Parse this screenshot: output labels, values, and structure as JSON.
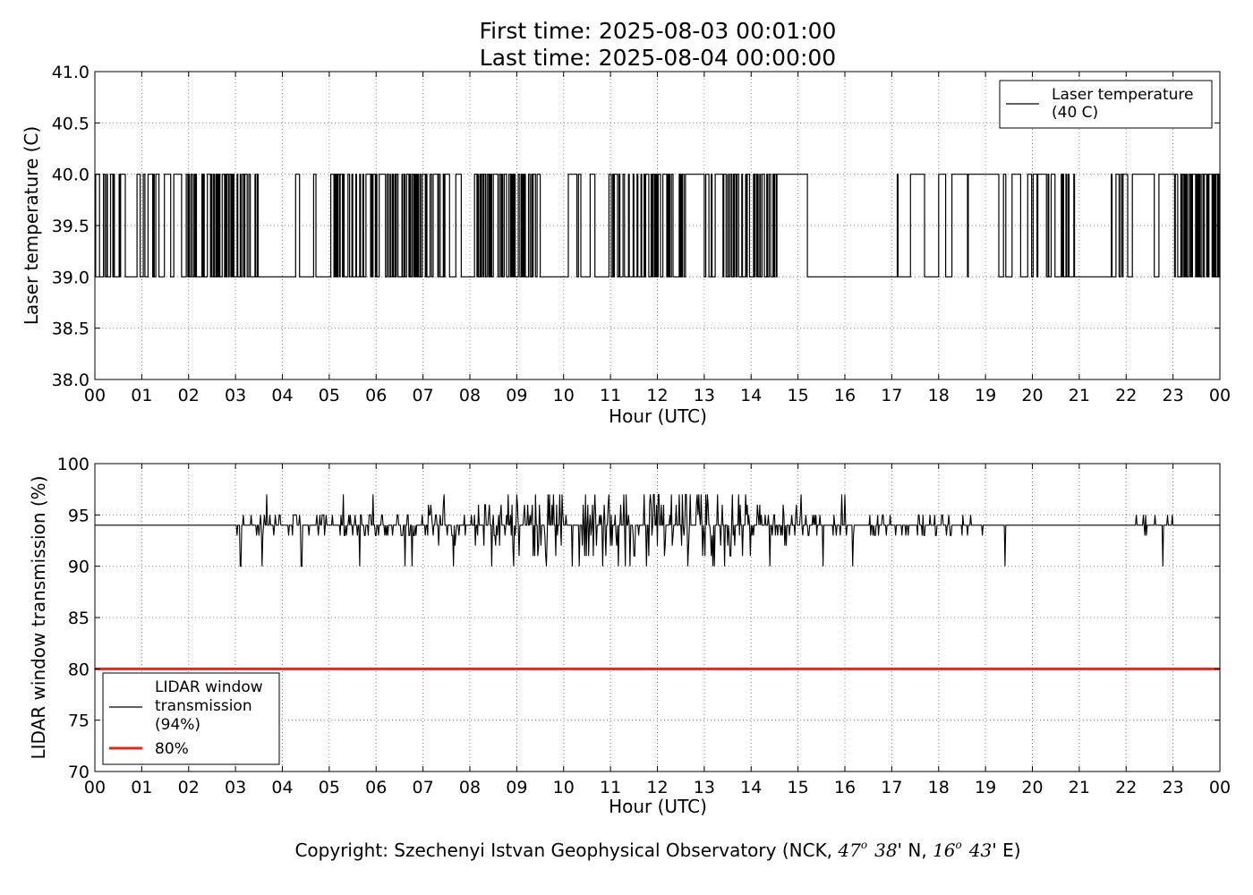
{
  "title": {
    "line1": "First time: 2025-08-03 00:01:00",
    "line2": "Last time: 2025-08-04 00:00:00"
  },
  "copyright": {
    "prefix": "Copyright: Szechenyi Istvan Geophysical Observatory (NCK, ",
    "lat_deg": "47",
    "lat_deg_sup": "o",
    "lat_min": "38",
    "lat_suffix": "' N, ",
    "lon_deg": "16",
    "lon_deg_sup": "o",
    "lon_min": "43",
    "lon_suffix": "' E)"
  },
  "colors": {
    "series": "#000000",
    "threshold": "#e8261a",
    "grid": "#8a8a8a"
  },
  "chart_data": [
    {
      "type": "line",
      "name": "laser-temperature-chart",
      "title": "",
      "xlabel": "Hour (UTC)",
      "ylabel": "Laser temperature (C)",
      "xlim": [
        0,
        24
      ],
      "ylim": [
        38.0,
        41.0
      ],
      "grid": true,
      "grid_style": "dotted",
      "legend_position": "top-right",
      "x_ticks": [
        "00",
        "01",
        "02",
        "03",
        "04",
        "05",
        "06",
        "07",
        "08",
        "09",
        "10",
        "11",
        "12",
        "13",
        "14",
        "15",
        "16",
        "17",
        "18",
        "19",
        "20",
        "21",
        "22",
        "23",
        "00"
      ],
      "y_ticks": [
        "38.0",
        "38.5",
        "39.0",
        "39.5",
        "40.0",
        "40.5",
        "41.0"
      ],
      "y_tick_values": [
        38.0,
        38.5,
        39.0,
        39.5,
        40.0,
        40.5,
        41.0
      ],
      "series": [
        {
          "name": "Laser temperature\n(40 C)",
          "legend_lines": [
            "Laser temperature",
            "(40 C)"
          ],
          "color": "#000000",
          "kind": "binary-step",
          "values_set": [
            39.0,
            40.0
          ],
          "low": 39.0,
          "high": 40.0,
          "toggle_density_by_hour": [
            14,
            10,
            22,
            14,
            4,
            18,
            22,
            10,
            20,
            18,
            6,
            22,
            18,
            16,
            20,
            2,
            0,
            4,
            2,
            4,
            14,
            6,
            4,
            24
          ],
          "sustained_high_intervals": [
            [
              12.6,
              13.0
            ],
            [
              14.55,
              15.15
            ]
          ],
          "sustained_low_intervals": [
            [
              0.65,
              0.9
            ],
            [
              3.5,
              4.0
            ],
            [
              9.5,
              10.1
            ],
            [
              15.2,
              16.6
            ],
            [
              20.9,
              21.5
            ]
          ]
        }
      ]
    },
    {
      "type": "line",
      "name": "window-transmission-chart",
      "title": "",
      "xlabel": "Hour (UTC)",
      "ylabel": "LIDAR window transmission (%)",
      "xlim": [
        0,
        24
      ],
      "ylim": [
        70,
        100
      ],
      "grid": true,
      "grid_style": "dotted",
      "legend_position": "bottom-left",
      "x_ticks": [
        "00",
        "01",
        "02",
        "03",
        "04",
        "05",
        "06",
        "07",
        "08",
        "09",
        "10",
        "11",
        "12",
        "13",
        "14",
        "15",
        "16",
        "17",
        "18",
        "19",
        "20",
        "21",
        "22",
        "23",
        "00"
      ],
      "y_ticks": [
        "70",
        "75",
        "80",
        "85",
        "90",
        "95",
        "100"
      ],
      "y_tick_values": [
        70,
        75,
        80,
        85,
        90,
        95,
        100
      ],
      "series": [
        {
          "name": "LIDAR window\ntransmission\n(94%)",
          "legend_lines": [
            "LIDAR window",
            "transmission",
            "(94%)"
          ],
          "color": "#000000",
          "kind": "noisy-baseline",
          "baseline": 94,
          "noise_amplitude_by_hour": [
            0,
            0,
            0,
            0.6,
            1,
            1.2,
            1.2,
            1.4,
            2,
            3,
            3,
            3,
            3,
            3,
            2,
            1.2,
            0.8,
            0.6,
            0.6,
            0.3,
            0,
            0,
            0.5,
            0
          ],
          "min_observed": 90,
          "max_observed": 97
        },
        {
          "name": "80%",
          "legend_lines": [
            "80%"
          ],
          "color": "#e8261a",
          "kind": "constant",
          "value": 80
        }
      ]
    }
  ]
}
